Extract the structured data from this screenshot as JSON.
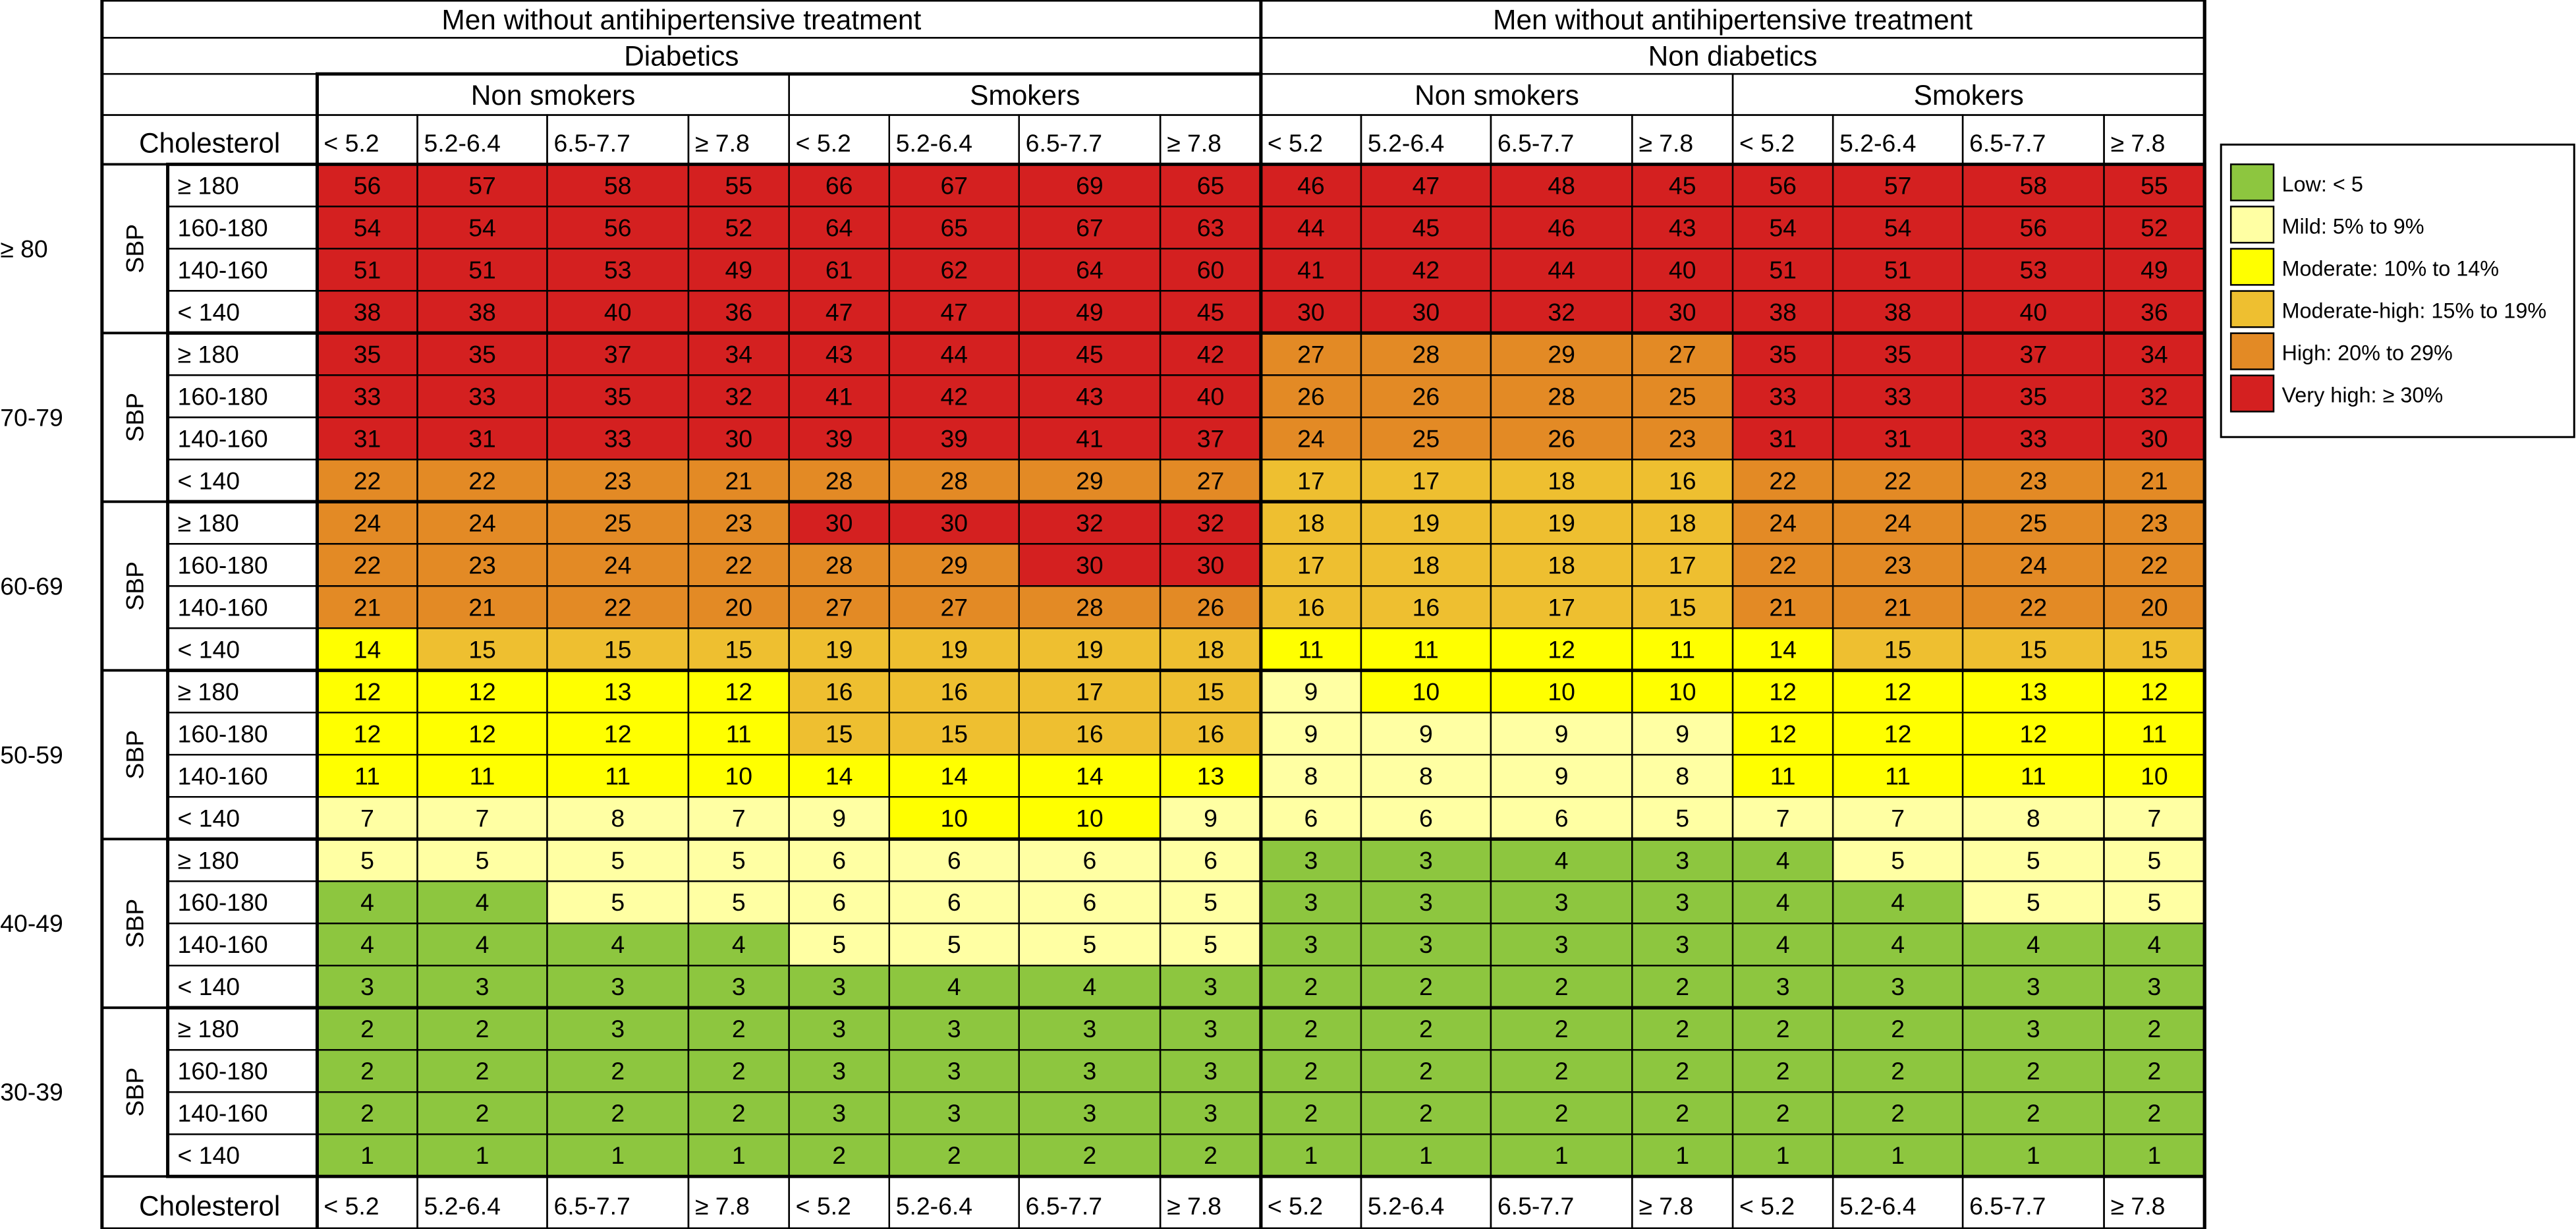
{
  "header": {
    "treatment": "Men without antihipertensive treatment",
    "groups": [
      "Diabetics",
      "Non diabetics"
    ],
    "smoking": [
      "Non smokers",
      "Smokers"
    ],
    "cholesterol_label": "Cholesterol",
    "cholesterol": [
      "< 5.2",
      "5.2-6.4",
      "6.5-7.7",
      "≥ 7.8"
    ]
  },
  "row_label": "SBP",
  "ages": [
    "≥ 80",
    "70-79",
    "60-69",
    "50-59",
    "40-49",
    "30-39"
  ],
  "sbp": [
    "≥ 180",
    "160-180",
    "140-160",
    "< 140"
  ],
  "table": {
    "rows": [
      [
        56,
        57,
        58,
        55,
        66,
        67,
        69,
        65,
        46,
        47,
        48,
        45,
        56,
        57,
        58,
        55
      ],
      [
        54,
        54,
        56,
        52,
        64,
        65,
        67,
        63,
        44,
        45,
        46,
        43,
        54,
        54,
        56,
        52
      ],
      [
        51,
        51,
        53,
        49,
        61,
        62,
        64,
        60,
        41,
        42,
        44,
        40,
        51,
        51,
        53,
        49
      ],
      [
        38,
        38,
        40,
        36,
        47,
        47,
        49,
        45,
        30,
        30,
        32,
        30,
        38,
        38,
        40,
        36
      ],
      [
        35,
        35,
        37,
        34,
        43,
        44,
        45,
        42,
        27,
        28,
        29,
        27,
        35,
        35,
        37,
        34
      ],
      [
        33,
        33,
        35,
        32,
        41,
        42,
        43,
        40,
        26,
        26,
        28,
        25,
        33,
        33,
        35,
        32
      ],
      [
        31,
        31,
        33,
        30,
        39,
        39,
        41,
        37,
        24,
        25,
        26,
        23,
        31,
        31,
        33,
        30
      ],
      [
        22,
        22,
        23,
        21,
        28,
        28,
        29,
        27,
        17,
        17,
        18,
        16,
        22,
        22,
        23,
        21
      ],
      [
        24,
        24,
        25,
        23,
        30,
        30,
        32,
        32,
        18,
        19,
        19,
        18,
        24,
        24,
        25,
        23
      ],
      [
        22,
        23,
        24,
        22,
        28,
        29,
        30,
        30,
        17,
        18,
        18,
        17,
        22,
        23,
        24,
        22
      ],
      [
        21,
        21,
        22,
        20,
        27,
        27,
        28,
        26,
        16,
        16,
        17,
        15,
        21,
        21,
        22,
        20
      ],
      [
        14,
        15,
        15,
        15,
        19,
        19,
        19,
        18,
        11,
        11,
        12,
        11,
        14,
        15,
        15,
        15
      ],
      [
        12,
        12,
        13,
        12,
        16,
        16,
        17,
        15,
        9,
        10,
        10,
        10,
        12,
        12,
        13,
        12
      ],
      [
        12,
        12,
        12,
        11,
        15,
        15,
        16,
        16,
        9,
        9,
        9,
        9,
        12,
        12,
        12,
        11
      ],
      [
        11,
        11,
        11,
        10,
        14,
        14,
        14,
        13,
        8,
        8,
        9,
        8,
        11,
        11,
        11,
        10
      ],
      [
        7,
        7,
        8,
        7,
        9,
        10,
        10,
        9,
        6,
        6,
        6,
        5,
        7,
        7,
        8,
        7
      ],
      [
        5,
        5,
        5,
        5,
        6,
        6,
        6,
        6,
        3,
        3,
        4,
        3,
        4,
        5,
        5,
        5
      ],
      [
        4,
        4,
        5,
        5,
        6,
        6,
        6,
        5,
        3,
        3,
        3,
        3,
        4,
        4,
        5,
        5
      ],
      [
        4,
        4,
        4,
        4,
        5,
        5,
        5,
        5,
        3,
        3,
        3,
        3,
        4,
        4,
        4,
        4
      ],
      [
        3,
        3,
        3,
        3,
        3,
        4,
        4,
        3,
        2,
        2,
        2,
        2,
        3,
        3,
        3,
        3
      ],
      [
        2,
        2,
        3,
        2,
        3,
        3,
        3,
        3,
        2,
        2,
        2,
        2,
        2,
        2,
        3,
        2
      ],
      [
        2,
        2,
        2,
        2,
        3,
        3,
        3,
        3,
        2,
        2,
        2,
        2,
        2,
        2,
        2,
        2
      ],
      [
        2,
        2,
        2,
        2,
        3,
        3,
        3,
        3,
        2,
        2,
        2,
        2,
        2,
        2,
        2,
        2
      ],
      [
        1,
        1,
        1,
        1,
        2,
        2,
        2,
        2,
        1,
        1,
        1,
        1,
        1,
        1,
        1,
        1
      ]
    ]
  },
  "legend": {
    "items": [
      {
        "label": "Low: < 5",
        "color": "#8dc63f"
      },
      {
        "label": "Mild: 5% to 9%",
        "color": "#ffffa3"
      },
      {
        "label": "Moderate: 10% to 14%",
        "color": "#ffff00"
      },
      {
        "label": "Moderate-high: 15% to 19%",
        "color": "#eebf30"
      },
      {
        "label": "High: 20% to 29%",
        "color": "#e38a25"
      },
      {
        "label": "Very high: ≥ 30%",
        "color": "#d42020"
      }
    ],
    "thresholds": [
      5,
      10,
      15,
      20,
      30
    ]
  }
}
